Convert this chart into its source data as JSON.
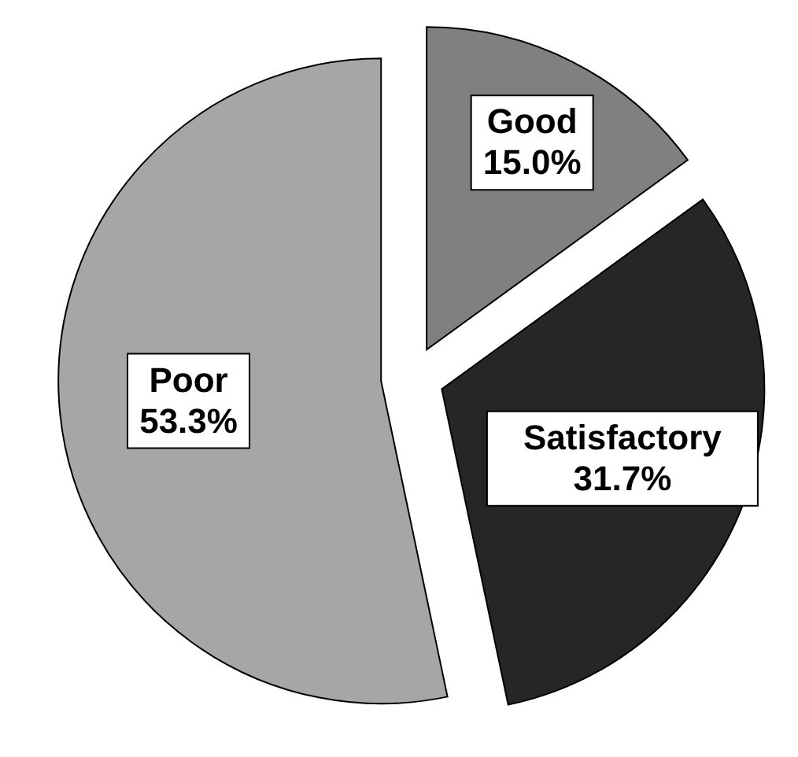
{
  "chart_data": {
    "type": "pie",
    "categories": [
      "Good",
      "Satisfactory",
      "Poor"
    ],
    "values": [
      15.0,
      31.7,
      53.3
    ],
    "colors": [
      "#808080",
      "#262626",
      "#a6a6a6"
    ],
    "value_labels": [
      "15.0%",
      "31.7%",
      "53.3%"
    ]
  }
}
